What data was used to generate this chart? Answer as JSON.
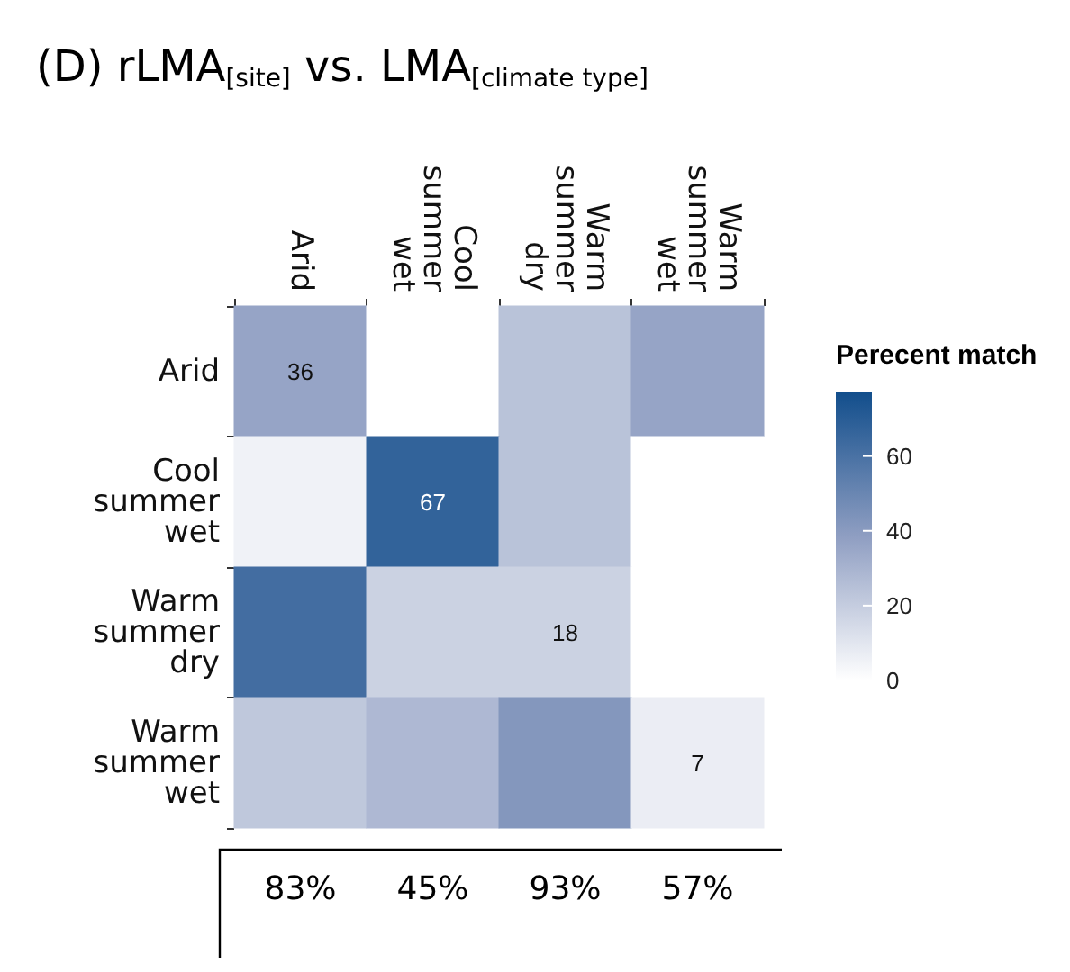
{
  "chart_data": {
    "type": "heatmap",
    "title": "(D) rLMA$_{[site]}$ vs. LMA$_{[climate type]}$",
    "clabel": "Perecent match",
    "categories": [
      "Arid",
      "Cool summer wet",
      "Warm summer dry",
      "Warm summer wet"
    ],
    "y_categories": [
      "Arid",
      "Cool summer wet",
      "Warm summer dry",
      "Warm summer wet"
    ],
    "cells": [
      [
        36,
        0,
        24,
        36
      ],
      [
        5,
        67,
        24,
        0
      ],
      [
        62,
        18,
        18,
        0
      ],
      [
        22,
        28,
        42,
        7
      ]
    ],
    "cell_labels": [
      [
        "36",
        null,
        null,
        null
      ],
      [
        null,
        "67",
        null,
        null
      ],
      [
        null,
        null,
        "18",
        null
      ],
      [
        null,
        null,
        null,
        "7"
      ]
    ],
    "clim": [
      0,
      77
    ],
    "cticks": [
      0,
      20,
      40,
      60
    ],
    "annotations": [
      "83%",
      "45%",
      "93%",
      "57%"
    ]
  }
}
